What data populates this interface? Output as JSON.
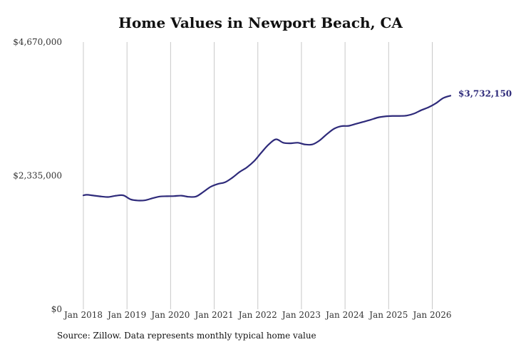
{
  "chart_data": {
    "type": "line",
    "title": "Home Values in Newport Beach, CA",
    "xlabel": "",
    "ylabel": "",
    "x_tick_labels": [
      "Jan 2018",
      "Jan 2019",
      "Jan 2020",
      "Jan 2021",
      "Jan 2022",
      "Jan 2023",
      "Jan 2024",
      "Jan 2025",
      "Jan 2026"
    ],
    "y_tick_labels": [
      "$0",
      "$2,335,000",
      "$4,670,000"
    ],
    "ylim": [
      0,
      4670000
    ],
    "xlim": [
      "2018-01",
      "2026-06"
    ],
    "grid": "vertical",
    "line_color": "#2e2a7a",
    "last_value_label": "$3,732,150",
    "series": [
      {
        "points": [
          [
            "2018-01",
            1990000
          ],
          [
            "2018-02",
            2000000
          ],
          [
            "2018-04",
            1985000
          ],
          [
            "2018-06",
            1970000
          ],
          [
            "2018-08",
            1962000
          ],
          [
            "2018-10",
            1985000
          ],
          [
            "2018-12",
            1990000
          ],
          [
            "2019-02",
            1920000
          ],
          [
            "2019-04",
            1900000
          ],
          [
            "2019-06",
            1905000
          ],
          [
            "2019-08",
            1940000
          ],
          [
            "2019-10",
            1970000
          ],
          [
            "2019-12",
            1975000
          ],
          [
            "2020-02",
            1978000
          ],
          [
            "2020-04",
            1985000
          ],
          [
            "2020-06",
            1965000
          ],
          [
            "2020-08",
            1970000
          ],
          [
            "2020-10",
            2050000
          ],
          [
            "2020-12",
            2140000
          ],
          [
            "2021-02",
            2190000
          ],
          [
            "2021-04",
            2220000
          ],
          [
            "2021-06",
            2300000
          ],
          [
            "2021-08",
            2400000
          ],
          [
            "2021-10",
            2480000
          ],
          [
            "2021-12",
            2590000
          ],
          [
            "2022-02",
            2740000
          ],
          [
            "2022-04",
            2880000
          ],
          [
            "2022-06",
            2970000
          ],
          [
            "2022-08",
            2910000
          ],
          [
            "2022-10",
            2900000
          ],
          [
            "2022-12",
            2910000
          ],
          [
            "2023-02",
            2880000
          ],
          [
            "2023-04",
            2880000
          ],
          [
            "2023-06",
            2950000
          ],
          [
            "2023-08",
            3060000
          ],
          [
            "2023-10",
            3155000
          ],
          [
            "2023-12",
            3200000
          ],
          [
            "2024-02",
            3205000
          ],
          [
            "2024-04",
            3240000
          ],
          [
            "2024-06",
            3275000
          ],
          [
            "2024-08",
            3310000
          ],
          [
            "2024-10",
            3350000
          ],
          [
            "2024-12",
            3370000
          ],
          [
            "2025-02",
            3378000
          ],
          [
            "2025-04",
            3378000
          ],
          [
            "2025-06",
            3385000
          ],
          [
            "2025-08",
            3420000
          ],
          [
            "2025-10",
            3480000
          ],
          [
            "2025-12",
            3530000
          ],
          [
            "2026-02",
            3600000
          ],
          [
            "2026-04",
            3690000
          ],
          [
            "2026-06",
            3732150
          ]
        ]
      }
    ]
  },
  "source_text": "Source: Zillow. Data represents monthly typical home value"
}
